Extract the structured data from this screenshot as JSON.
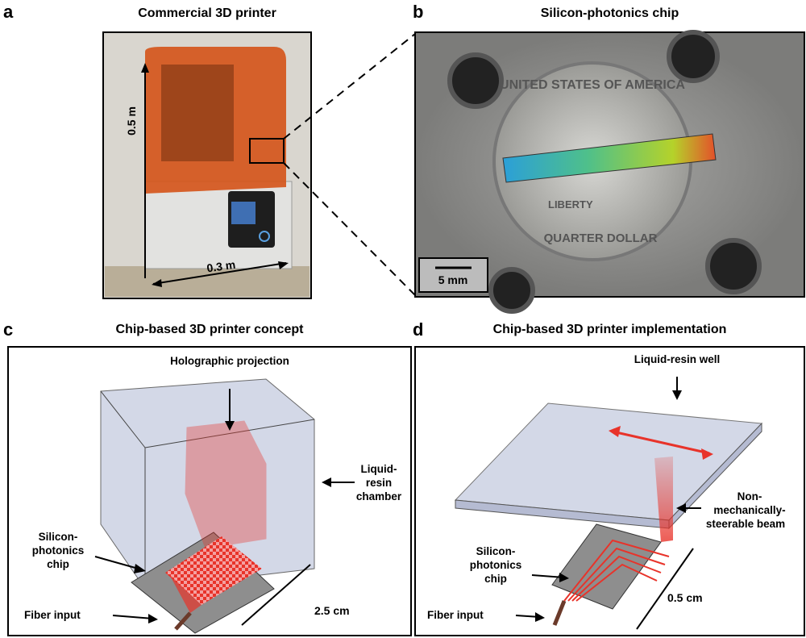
{
  "panels": {
    "a": {
      "label": "a",
      "title": "Commercial 3D printer",
      "height_label": "0.5 m",
      "width_label": "0.3 m"
    },
    "b": {
      "label": "b",
      "title": "Silicon-photonics chip",
      "scale_bar": "5 mm",
      "coin_text_top": "UNITED STATES OF AMERICA",
      "coin_text_liberty": "LIBERTY",
      "coin_text_bottom": "QUARTER DOLLAR"
    },
    "c": {
      "label": "c",
      "title": "Chip-based 3D printer concept",
      "annotations": {
        "projection": "Holographic projection",
        "chamber_1": "Liquid-",
        "chamber_2": "resin",
        "chamber_3": "chamber",
        "chip_1": "Silicon-",
        "chip_2": "photonics",
        "chip_3": "chip",
        "size": "2.5 cm",
        "fiber": "Fiber input"
      }
    },
    "d": {
      "label": "d",
      "title": "Chip-based 3D printer implementation",
      "annotations": {
        "well": "Liquid-resin well",
        "beam_1": "Non-",
        "beam_2": "mechanically-",
        "beam_3": "steerable beam",
        "chip_1": "Silicon-",
        "chip_2": "photonics",
        "chip_3": "chip",
        "size": "0.5 cm",
        "fiber": "Fiber input"
      }
    }
  },
  "colors": {
    "laser_red": "#e8332a",
    "printer_orange": "#d5561c",
    "chamber_blue": "#c9cfe2",
    "chip_gray": "#8e8e8e"
  }
}
